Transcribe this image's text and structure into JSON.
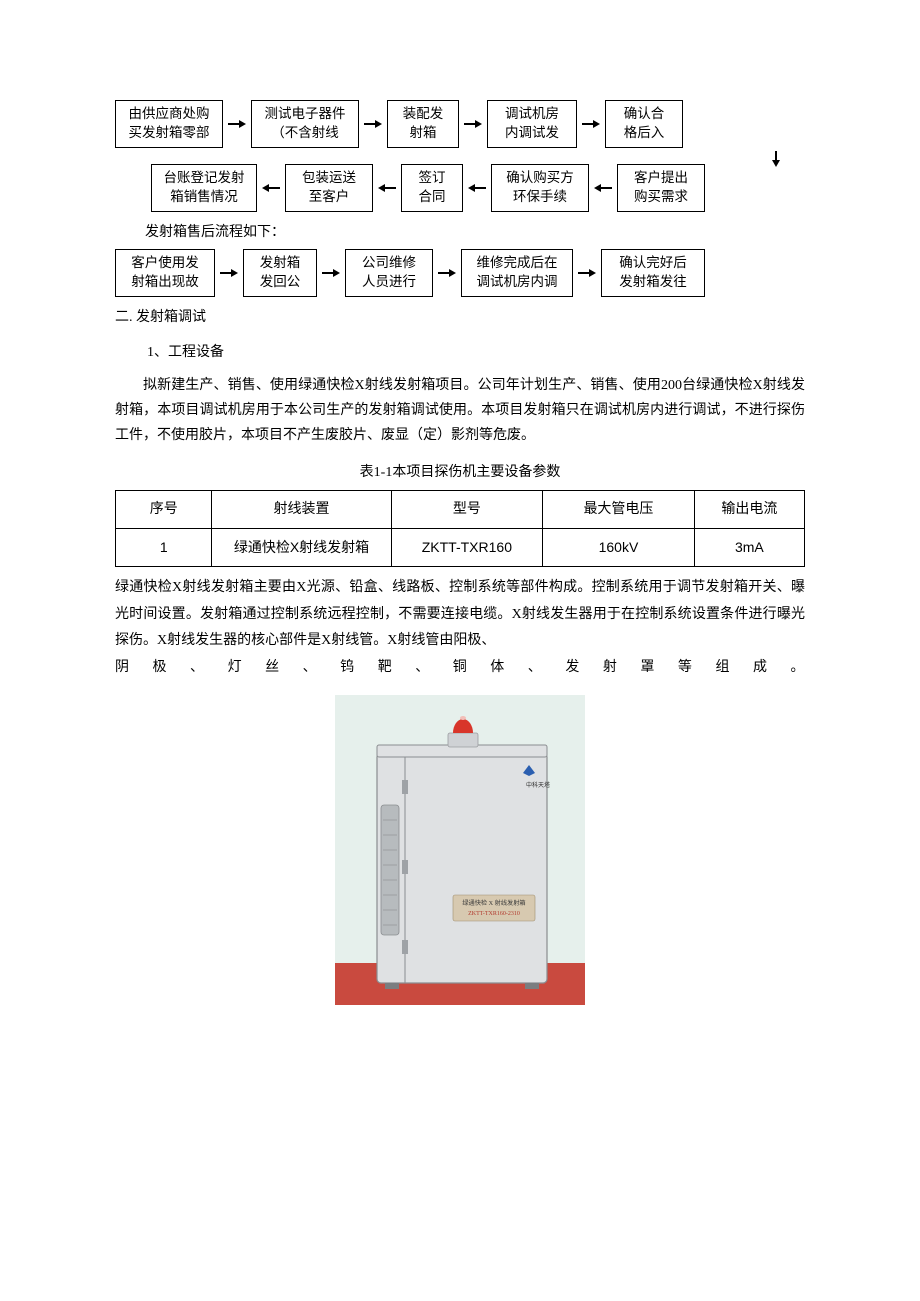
{
  "flow1": {
    "row1": [
      "由供应商处购\n买发射箱零部",
      "测试电子器件\n（不含射线",
      "装配发\n射箱",
      "调试机房\n内调试发",
      "确认合\n格后入"
    ],
    "row2": [
      "台账登记发射\n箱销售情况",
      "包装运送\n至客户",
      "签订\n合同",
      "确认购买方\n环保手续",
      "客户提出\n购买需求"
    ]
  },
  "mid_label": "发射箱售后流程如下：",
  "flow2": {
    "row": [
      "客户使用发\n射箱出现故",
      "发射箱\n发回公",
      "公司维修\n人员进行",
      "维修完成后在\n调试机房内调",
      "确认完好后\n发射箱发往"
    ]
  },
  "section2_title": "二. 发射箱调试",
  "section2_sub1": "1、工程设备",
  "para1": "拟新建生产、销售、使用绿通快检X射线发射箱项目。公司年计划生产、销售、使用200台绿通快检X射线发射箱，本项目调试机房用于本公司生产的发射箱调试使用。本项目发射箱只在调试机房内进行调试，不进行探伤工件，不使用胶片，本项目不产生废胶片、废显（定）影剂等危废。",
  "table_caption": "表1-1本项目探伤机主要设备参数",
  "table": {
    "headers": [
      "序号",
      "射线装置",
      "型号",
      "最大管电压",
      "输出电流"
    ],
    "row": [
      "1",
      "绿通快检X射线发射箱",
      "ZKTT-TXR160",
      "160kV",
      "3mA"
    ],
    "col_widths": [
      "14%",
      "26%",
      "22%",
      "22%",
      "16%"
    ]
  },
  "para2": "绿通快检X射线发射箱主要由X光源、铅盒、线路板、控制系统等部件构成。控制系统用于调节发射箱开关、曝光时间设置。发射箱通过控制系统远程控制，不需要连接电缆。X射线发生器用于在控制系统设置条件进行曝光探伤。X射线发生器的核心部件是X射线管。X射线管由阳极、",
  "para2b": "阴极、灯丝、钨靶、铜体、发射罩等组成。",
  "device": {
    "bg_wall": "#e6f0ec",
    "bg_floor": "#c94a3f",
    "body_fill": "#dfe1e3",
    "body_stroke": "#8a8d90",
    "vent_fill": "#b7bbbe",
    "label_band": "#d7c9b0",
    "label_text1": "绿通快检 X 射线发射箱",
    "label_text2": "ZKTT-TXR160-2310",
    "siren_red": "#d8352a",
    "siren_base": "#cfd2d5",
    "logo_text": "中科天塔"
  }
}
